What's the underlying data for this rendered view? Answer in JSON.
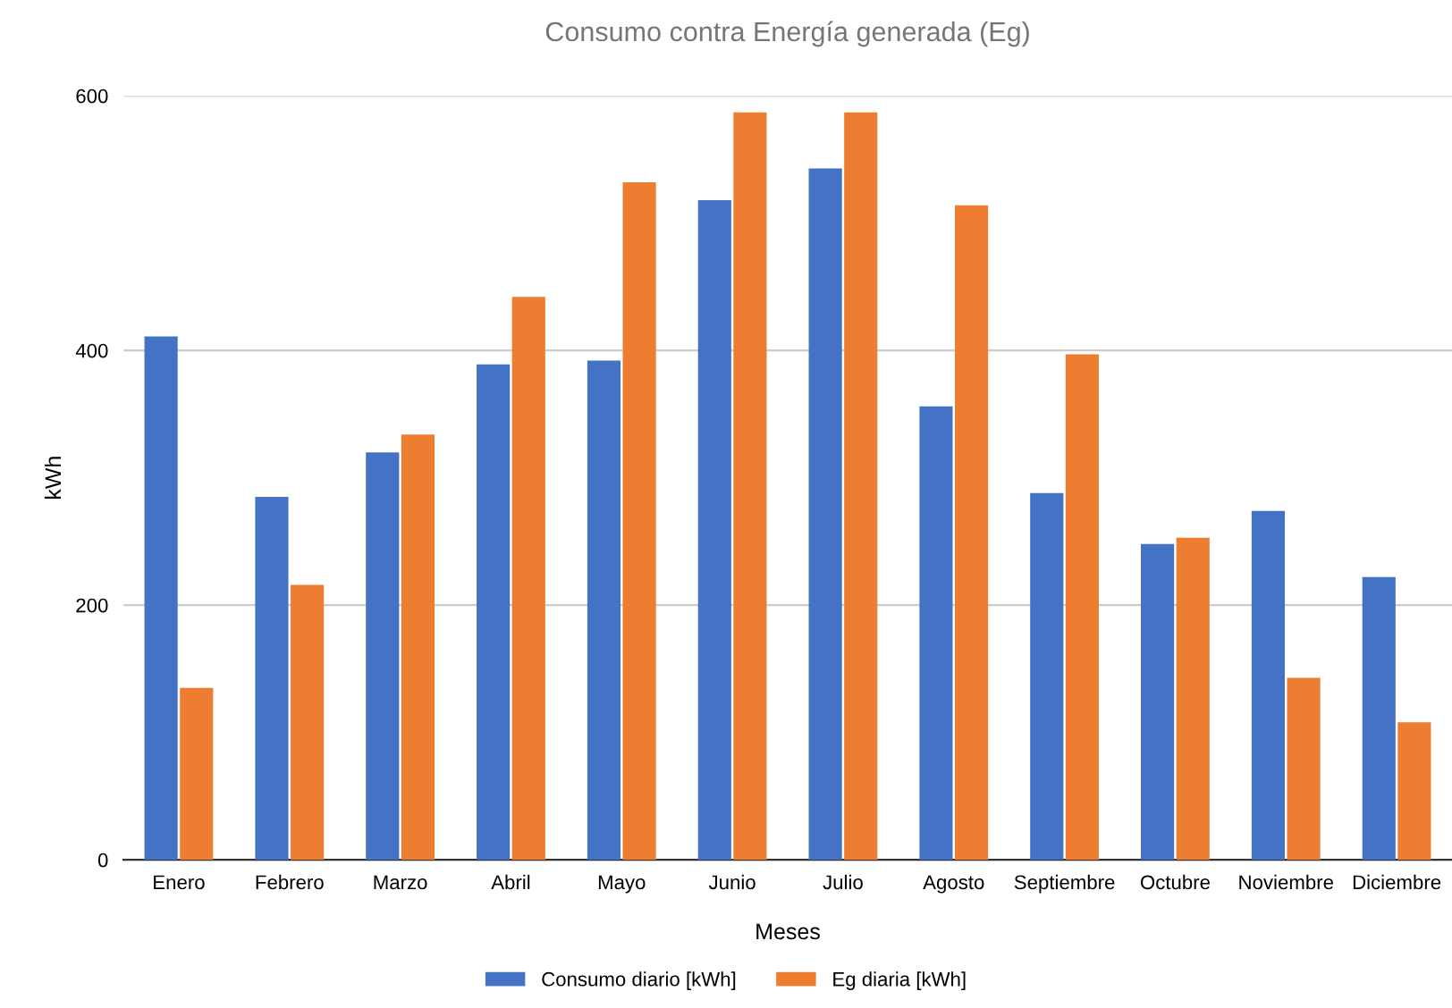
{
  "chart_data": {
    "type": "bar",
    "title": "Consumo contra Energía generada (Eg)",
    "xlabel": "Meses",
    "ylabel": "kWh",
    "categories": [
      "Enero",
      "Febrero",
      "Marzo",
      "Abril",
      "Mayo",
      "Junio",
      "Julio",
      "Agosto",
      "Septiembre",
      "Octubre",
      "Noviembre",
      "Diciembre"
    ],
    "series": [
      {
        "name": "Consumo diario [kWh]",
        "color": "#4472c4",
        "values": [
          411,
          285,
          320,
          389,
          392,
          518,
          543,
          356,
          288,
          248,
          274,
          222
        ]
      },
      {
        "name": "Eg diaria [kWh]",
        "color": "#ed7d31",
        "values": [
          135,
          216,
          334,
          442,
          532,
          587,
          587,
          514,
          397,
          253,
          143,
          108
        ]
      }
    ],
    "ylim": [
      0,
      600
    ],
    "yticks": [
      0,
      200,
      400,
      600
    ],
    "grid": "y",
    "legend": "bottom"
  }
}
